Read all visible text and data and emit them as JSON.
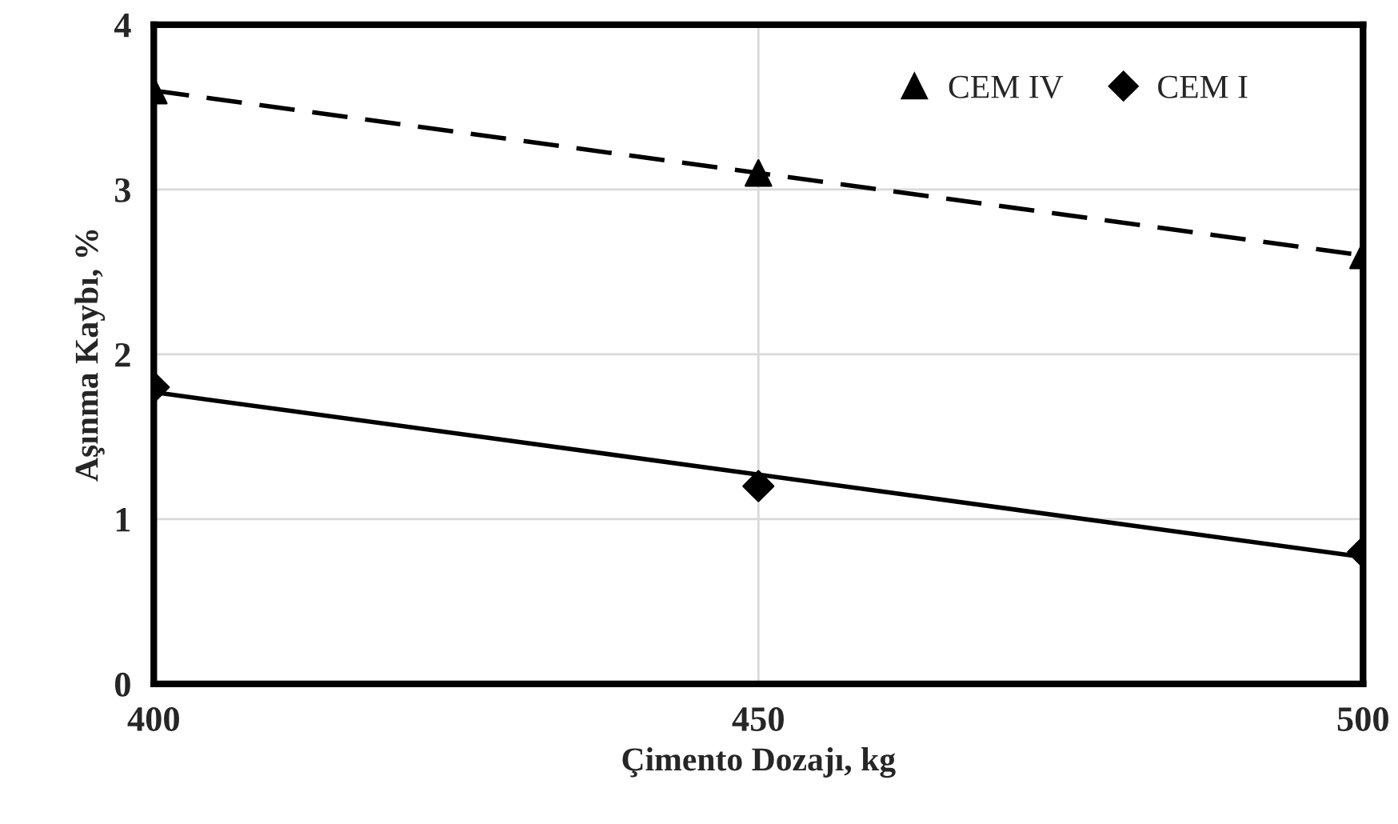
{
  "chart_data": {
    "type": "scatter",
    "xlabel": "Çimento Dozajı, kg",
    "ylabel": "Aşınma Kaybı, %",
    "xlim": [
      400,
      500
    ],
    "xticks": [
      400,
      450,
      500
    ],
    "ylim": [
      0,
      4
    ],
    "yticks": [
      0,
      1,
      2,
      3,
      4
    ],
    "grid": true,
    "legend": "top right",
    "series": [
      {
        "name": "CEM IV",
        "marker": "triangle",
        "color": "#000000",
        "x": [
          400,
          450,
          500
        ],
        "values": [
          3.6,
          3.1,
          2.6
        ]
      },
      {
        "name": "CEM I",
        "marker": "diamond",
        "color": "#000000",
        "x": [
          400,
          450,
          500
        ],
        "values": [
          1.8,
          1.2,
          0.8
        ]
      },
      {
        "type": "line",
        "line_style": "dashed",
        "color": "#000000",
        "x": [
          400,
          500
        ],
        "values": [
          3.6,
          2.6
        ]
      },
      {
        "type": "line",
        "line_style": "solid",
        "color": "#000000",
        "x": [
          400,
          500
        ],
        "values": [
          1.77,
          0.77
        ]
      }
    ]
  }
}
